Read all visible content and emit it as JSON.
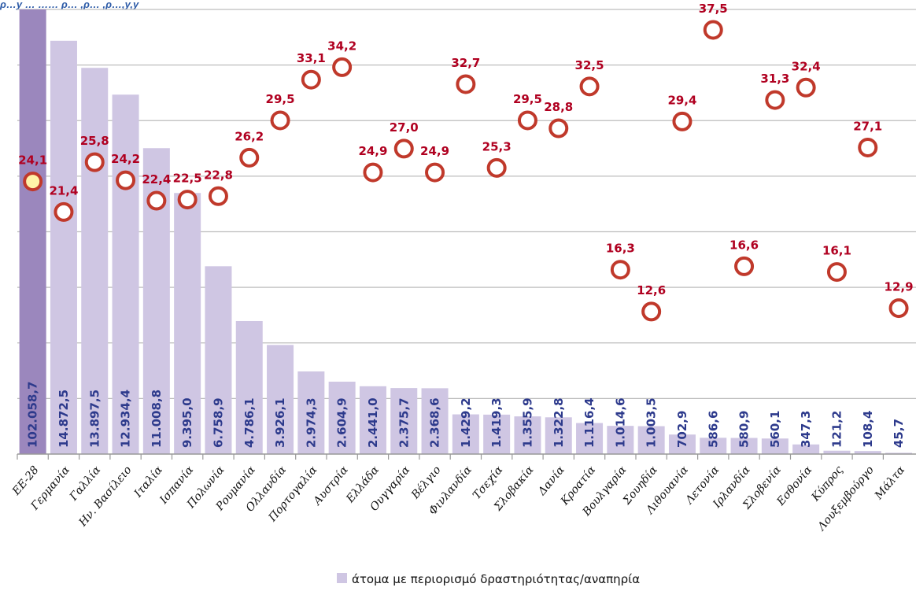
{
  "header": {
    "cut_title": "ρ…y … …… ρ… ,ρ… ,ρ…,y,y"
  },
  "chart_data": {
    "type": "bar",
    "categories": [
      "ΕΕ-28",
      "Γερμανία",
      "Γαλλία",
      "Ην. Βασίλειο",
      "Ιταλία",
      "Ισπανία",
      "Πολωνία",
      "Ρουμανία",
      "Ολλανδία",
      "Πορτογαλία",
      "Αυστρία",
      "Ελλάδα",
      "Ουγγαρία",
      "Βέλγιο",
      "Φινλανδία",
      "Τσεχία",
      "Σλοβακία",
      "Δανία",
      "Κροατία",
      "Βουλγαρία",
      "Σουηδία",
      "Λιθουανία",
      "Λετονία",
      "Ιρλανδία",
      "Σλοβενία",
      "Εσθονία",
      "Κύπρος",
      "Λουξεμβούργο",
      "Μάλτα"
    ],
    "series": [
      {
        "name": "άτομα με περιορισμό δραστηριότητας/αναπηρία",
        "values": [
          102058.7,
          14872.5,
          13897.5,
          12934.4,
          11008.8,
          9395.0,
          6758.9,
          4786.1,
          3926.1,
          2974.3,
          2604.9,
          2441.0,
          2375.7,
          2368.6,
          1429.2,
          1419.3,
          1355.9,
          1322.8,
          1116.4,
          1014.6,
          1003.5,
          702.9,
          586.6,
          580.9,
          560.1,
          347.3,
          121.2,
          108.4,
          45.7
        ],
        "labels": [
          "102.058,7",
          "14.872,5",
          "13.897,5",
          "12.934,4",
          "11.008,8",
          "9.395,0",
          "6.758,9",
          "4.786,1",
          "3.926,1",
          "2.974,3",
          "2.604,9",
          "2.441,0",
          "2.375,7",
          "2.368,6",
          "1.429,2",
          "1.419,3",
          "1.355,9",
          "1.322,8",
          "1.116,4",
          "1.014,6",
          "1.003,5",
          "702,9",
          "586,6",
          "580,9",
          "560,1",
          "347,3",
          "121,2",
          "108,4",
          "45,7"
        ]
      },
      {
        "values": [
          24.1,
          21.4,
          25.8,
          24.2,
          22.4,
          22.5,
          22.8,
          26.2,
          29.5,
          33.1,
          34.2,
          24.9,
          27.0,
          24.9,
          32.7,
          25.3,
          29.5,
          28.8,
          32.5,
          16.3,
          12.6,
          29.4,
          37.5,
          16.6,
          31.3,
          32.4,
          16.1,
          27.1,
          12.9
        ],
        "labels": [
          "24,1",
          "21,4",
          "25,8",
          "24,2",
          "22,4",
          "22,5",
          "22,8",
          "26,2",
          "29,5",
          "33,1",
          "34,2",
          "24,9",
          "27,0",
          "24,9",
          "32,7",
          "25,3",
          "29,5",
          "28,8",
          "32,5",
          "16,3",
          "12,6",
          "29,4",
          "37,5",
          "16,6",
          "31,3",
          "32,4",
          "16,1",
          "27,1",
          "12,9"
        ]
      }
    ],
    "legend": {
      "entry": "άτομα με περιορισμό δραστηριότητας/αναπηρία",
      "position": "bottom-center"
    },
    "ylim_bars": [
      0,
      16000
    ],
    "ylim_points": [
      0,
      40
    ],
    "grid": true,
    "colors": {
      "bar": "#cfc6e3",
      "bar_first": "#9b87bd",
      "bar_value_text": "#2d3a8c",
      "marker_ring": "#c0392b",
      "marker_fill": "#ffffff",
      "marker_first_fill": "#fff3a8",
      "point_label": "#b00020"
    }
  }
}
